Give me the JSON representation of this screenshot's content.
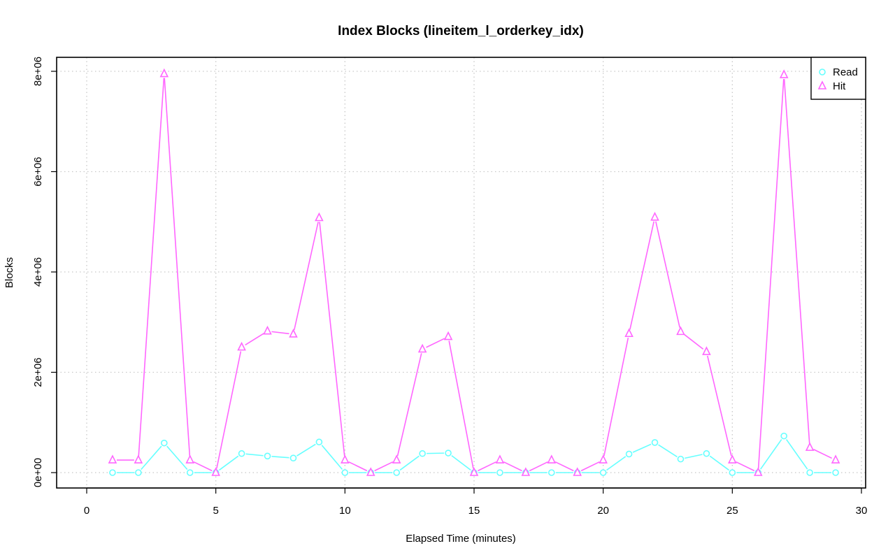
{
  "chart_data": {
    "type": "line",
    "title": "Index Blocks (lineitem_l_orderkey_idx)",
    "xlabel": "Elapsed Time (minutes)",
    "ylabel": "Blocks",
    "xlim": [
      0,
      30
    ],
    "ylim": [
      0,
      8000000
    ],
    "x_ticks": [
      0,
      5,
      10,
      15,
      20,
      25,
      30
    ],
    "x_tick_labels": [
      "0",
      "5",
      "10",
      "15",
      "20",
      "25",
      "30"
    ],
    "y_ticks": [
      0,
      2000000,
      4000000,
      6000000,
      8000000
    ],
    "y_tick_labels": [
      "0e+00",
      "2e+06",
      "4e+06",
      "6e+06",
      "8e+06"
    ],
    "grid": true,
    "legend_position": "top-right",
    "x": [
      1,
      2,
      3,
      4,
      5,
      6,
      7,
      8,
      9,
      10,
      11,
      12,
      13,
      14,
      15,
      16,
      17,
      18,
      19,
      20,
      21,
      22,
      23,
      24,
      25,
      26,
      27,
      28,
      29
    ],
    "series": [
      {
        "name": "Read",
        "color": "#66ffff",
        "marker": "circle",
        "values": [
          0,
          0,
          590000,
          0,
          0,
          380000,
          330000,
          290000,
          610000,
          0,
          0,
          0,
          380000,
          390000,
          0,
          0,
          0,
          0,
          0,
          0,
          370000,
          600000,
          270000,
          380000,
          0,
          0,
          730000,
          0,
          0
        ]
      },
      {
        "name": "Hit",
        "color": "#ff66ff",
        "marker": "triangle",
        "values": [
          250000,
          250000,
          7950000,
          250000,
          0,
          2500000,
          2820000,
          2760000,
          5080000,
          250000,
          0,
          250000,
          2460000,
          2710000,
          0,
          250000,
          0,
          250000,
          0,
          250000,
          2770000,
          5090000,
          2810000,
          2410000,
          250000,
          0,
          7930000,
          500000,
          250000
        ]
      }
    ]
  }
}
